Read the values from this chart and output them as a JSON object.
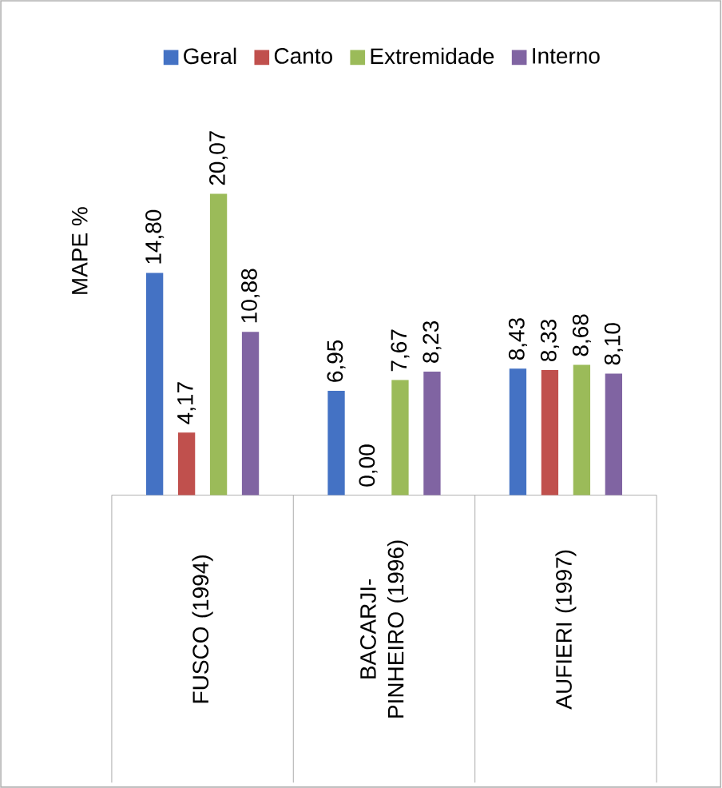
{
  "chart_data": {
    "type": "bar",
    "ylabel": "MAPE %",
    "legend": "top",
    "categories": [
      "FUSCO (1994)",
      "BACARJI-PINHEIRO (1996)",
      "AUFIERI (1997)"
    ],
    "series": [
      {
        "name": "Geral",
        "color": "#4472c4",
        "values": [
          14.8,
          6.95,
          8.43
        ],
        "value_labels": [
          "14,80",
          "6,95",
          "8,43"
        ]
      },
      {
        "name": "Canto",
        "color": "#c0504d",
        "values": [
          4.17,
          0.0,
          8.33
        ],
        "value_labels": [
          "4,17",
          "0,00",
          "8,33"
        ]
      },
      {
        "name": "Extremidade",
        "color": "#9bbb59",
        "values": [
          20.07,
          7.67,
          8.68
        ],
        "value_labels": [
          "20,07",
          "7,67",
          "8,68"
        ]
      },
      {
        "name": "Interno",
        "color": "#8064a2",
        "values": [
          10.88,
          8.23,
          8.1
        ],
        "value_labels": [
          "10,88",
          "8,23",
          "8,10"
        ]
      }
    ]
  }
}
